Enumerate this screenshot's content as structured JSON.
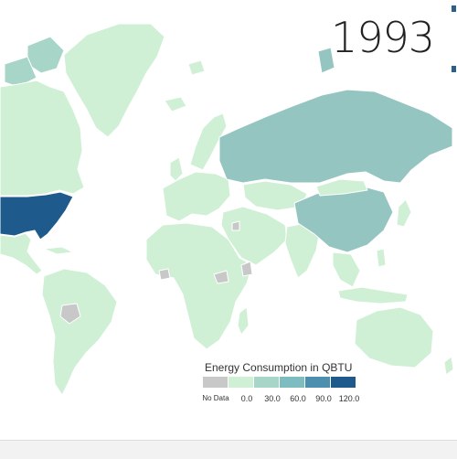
{
  "map": {
    "year": "1993",
    "legend": {
      "title": "Energy Consumption in QBTU",
      "labels": [
        "No Data",
        "0.0",
        "30.0",
        "60.0",
        "90.0",
        "120.0"
      ],
      "colors": [
        "#c8c8c8",
        "#d0f0d5",
        "#a7d5c8",
        "#7fbcbf",
        "#4d8fae",
        "#1e5a8c"
      ]
    },
    "colors": {
      "no_data": "#c8c8c8",
      "level_low": "#d0f0d5",
      "level_2": "#a7d5c8",
      "level_3": "#94c5c0",
      "level_high": "#1e5a8c"
    },
    "regions": [
      {
        "name": "Greenland",
        "level": "level_low"
      },
      {
        "name": "Canada",
        "level": "level_low"
      },
      {
        "name": "United States",
        "level": "level_high"
      },
      {
        "name": "Mexico",
        "level": "level_low"
      },
      {
        "name": "South America",
        "level": "level_low"
      },
      {
        "name": "Europe",
        "level": "level_low"
      },
      {
        "name": "Africa",
        "level": "level_low"
      },
      {
        "name": "Middle East",
        "level": "level_low"
      },
      {
        "name": "Russia",
        "level": "level_2"
      },
      {
        "name": "China",
        "level": "level_2"
      },
      {
        "name": "India",
        "level": "level_low"
      },
      {
        "name": "Australia",
        "level": "level_low"
      }
    ]
  }
}
